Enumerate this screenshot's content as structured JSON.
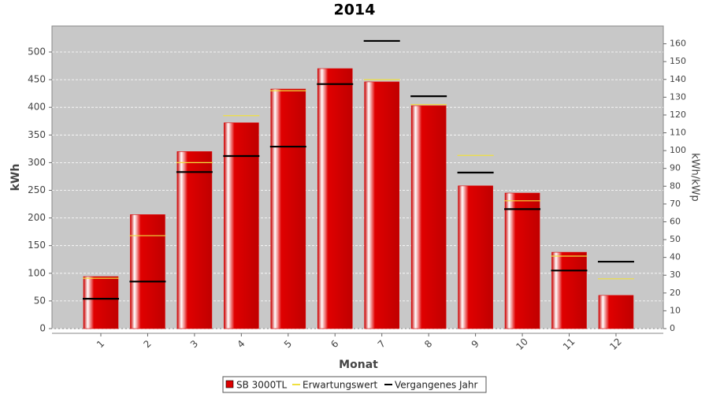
{
  "chart_data": {
    "type": "bar",
    "title": "2014",
    "x_label": "Monat",
    "y_label": "kWh",
    "y2_label": "kWh/kWp",
    "categories": [
      "1",
      "2",
      "3",
      "4",
      "5",
      "6",
      "7",
      "8",
      "9",
      "10",
      "11",
      "12"
    ],
    "series": [
      {
        "name": "SB 3000TL",
        "type": "bar",
        "color": "#dd0000",
        "values": [
          94,
          206,
          320,
          372,
          433,
          470,
          446,
          403,
          258,
          245,
          138,
          60
        ]
      },
      {
        "name": "Erwartungswert",
        "type": "line",
        "color": "#f0e040",
        "values": [
          91,
          168,
          300,
          385,
          430,
          442,
          450,
          405,
          313,
          231,
          131,
          90
        ]
      },
      {
        "name": "Vergangenes Jahr",
        "type": "line",
        "color": "#000000",
        "values": [
          54,
          85,
          283,
          312,
          329,
          442,
          520,
          420,
          282,
          216,
          105,
          121
        ]
      }
    ],
    "ylim": [
      0,
      547
    ],
    "yticks": [
      0,
      50,
      100,
      150,
      200,
      250,
      300,
      350,
      400,
      450,
      500
    ],
    "y2lim": [
      0,
      170
    ],
    "y2ticks": [
      0,
      10,
      20,
      30,
      40,
      50,
      60,
      70,
      80,
      90,
      100,
      110,
      120,
      130,
      140,
      150,
      160
    ],
    "grid": true
  }
}
